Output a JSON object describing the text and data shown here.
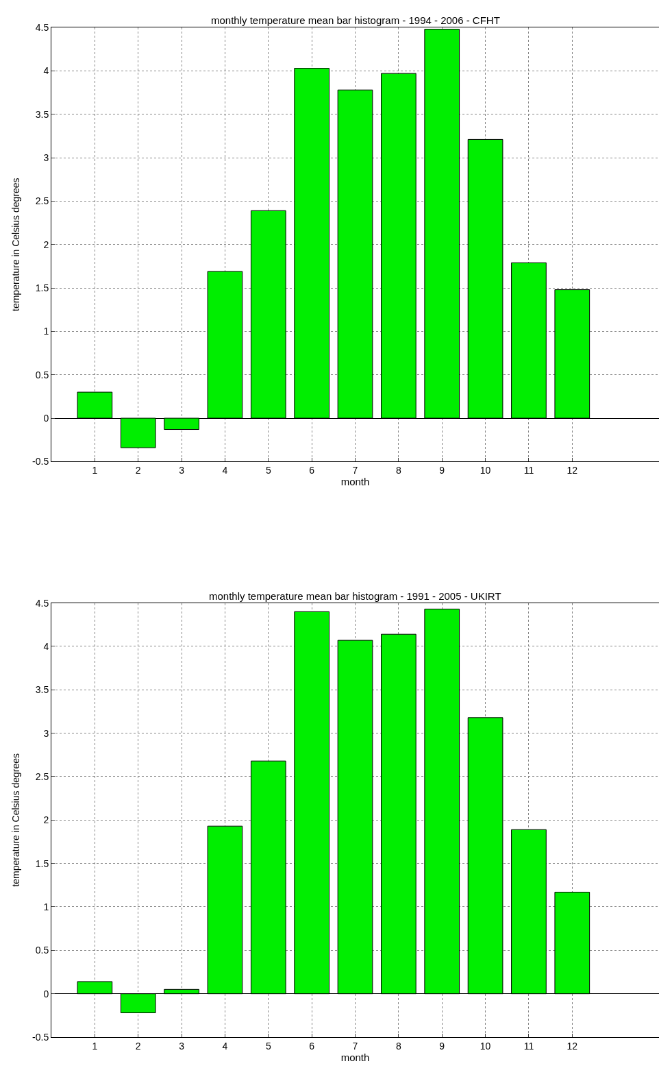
{
  "chart_data": [
    {
      "type": "bar",
      "title": "monthly temperature mean bar histogram - 1994 - 2006 - CFHT",
      "xlabel": "month",
      "ylabel": "temperature in Celsius degrees",
      "x": [
        1,
        2,
        3,
        4,
        5,
        6,
        7,
        8,
        9,
        10,
        11,
        12
      ],
      "color": "#00ee00",
      "values": [
        0.3,
        -0.34,
        -0.13,
        1.69,
        2.39,
        4.03,
        3.78,
        3.97,
        4.48,
        3.21,
        1.79,
        1.48
      ],
      "xlim": [
        0,
        14
      ],
      "xticks": [
        1,
        2,
        3,
        4,
        5,
        6,
        7,
        8,
        9,
        10,
        11,
        12
      ],
      "ylim": [
        -0.5,
        4.5
      ],
      "yticks": [
        -0.5,
        0,
        0.5,
        1,
        1.5,
        2,
        2.5,
        3,
        3.5,
        4,
        4.5
      ],
      "grid": true
    },
    {
      "type": "bar",
      "title": "monthly temperature mean bar histogram - 1991 - 2005 - UKIRT",
      "xlabel": "month",
      "ylabel": "temperature in Celsius degrees",
      "x": [
        1,
        2,
        3,
        4,
        5,
        6,
        7,
        8,
        9,
        10,
        11,
        12
      ],
      "color": "#00ee00",
      "values": [
        0.14,
        -0.22,
        0.05,
        1.93,
        2.68,
        4.4,
        4.07,
        4.14,
        4.43,
        3.18,
        1.89,
        1.17
      ],
      "xlim": [
        0,
        14
      ],
      "xticks": [
        1,
        2,
        3,
        4,
        5,
        6,
        7,
        8,
        9,
        10,
        11,
        12
      ],
      "ylim": [
        -0.5,
        4.5
      ],
      "yticks": [
        -0.5,
        0,
        0.5,
        1,
        1.5,
        2,
        2.5,
        3,
        3.5,
        4,
        4.5
      ],
      "grid": true
    }
  ]
}
